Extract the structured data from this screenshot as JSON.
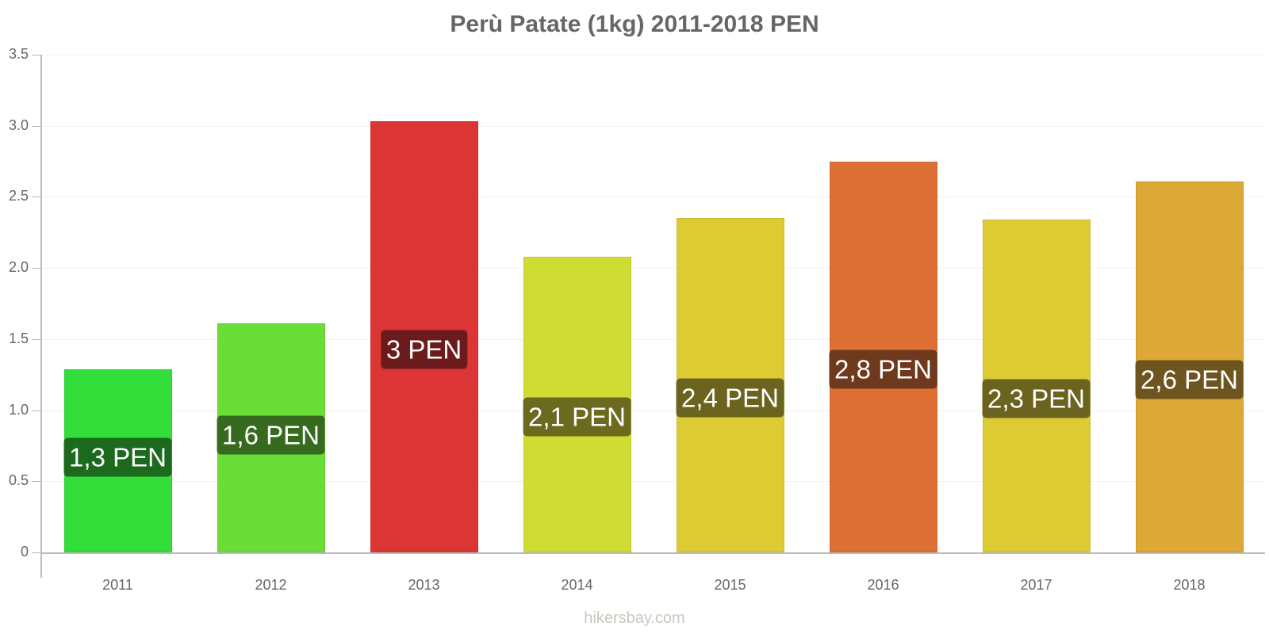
{
  "chart_data": {
    "type": "bar",
    "title": "Perù Patate (1kg) 2011-2018 PEN",
    "xlabel": "",
    "ylabel": "",
    "ylim": [
      0,
      3.5
    ],
    "yticks": [
      "0",
      "0.5",
      "1.0",
      "1.5",
      "2.0",
      "2.5",
      "3.0",
      "3.5"
    ],
    "grid": true,
    "legend": null,
    "categories": [
      "2011",
      "2012",
      "2013",
      "2014",
      "2015",
      "2016",
      "2017",
      "2018"
    ],
    "values": [
      1.29,
      1.61,
      3.03,
      2.08,
      2.35,
      2.75,
      2.34,
      2.61
    ],
    "data_labels": [
      "1,3 PEN",
      "1,6 PEN",
      "3 PEN",
      "2,1 PEN",
      "2,4 PEN",
      "2,8 PEN",
      "2,3 PEN",
      "2,6 PEN"
    ],
    "bar_colors": [
      "#33dd3a",
      "#6ade37",
      "#dc3535",
      "#cfdc33",
      "#dccb33",
      "#de6f35",
      "#dccb33",
      "#dda836"
    ],
    "label_colors": [
      "#1c6a1e",
      "#376a1e",
      "#6b1b1b",
      "#6b6a1e",
      "#6b631e",
      "#6e391c",
      "#6b631e",
      "#6e541e"
    ]
  },
  "watermark": "hikersbay.com"
}
